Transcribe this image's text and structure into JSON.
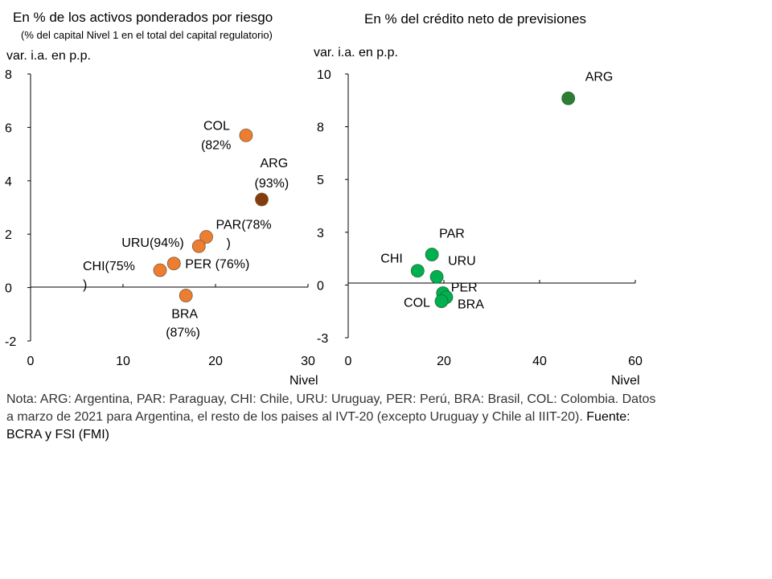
{
  "chart_data": [
    {
      "type": "scatter",
      "title": "En % de los activos ponderados por riesgo",
      "subtitle": "(% del capital Nivel 1 en el total del capital regulatorio)",
      "ylabel": "var. i.a. en p.p.",
      "xlabel": "Nivel",
      "xlim": [
        0,
        30
      ],
      "ylim": [
        -2,
        8
      ],
      "xticks": [
        "0",
        "10",
        "20",
        "30"
      ],
      "yticks": [
        "8",
        "6",
        "4",
        "2",
        "0",
        "-2"
      ],
      "points": [
        {
          "id": "col",
          "label_lines": [
            "COL",
            "(82%"
          ],
          "x": 23.3,
          "y": 5.7,
          "color": "#ED7D31"
        },
        {
          "id": "arg",
          "label_lines": [
            "ARG",
            "(93%)"
          ],
          "x": 25.0,
          "y": 3.3,
          "color": "#843C0C"
        },
        {
          "id": "par",
          "label_lines": [
            "PAR(78%",
            ")"
          ],
          "x": 19.0,
          "y": 1.9,
          "color": "#ED7D31"
        },
        {
          "id": "uru",
          "label_lines": [
            "URU(94%)"
          ],
          "x": 18.2,
          "y": 1.55,
          "color": "#ED7D31"
        },
        {
          "id": "per",
          "label_lines": [
            "PER (76%)"
          ],
          "x": 15.5,
          "y": 0.9,
          "color": "#ED7D31"
        },
        {
          "id": "chi",
          "label_lines": [
            "CHI(75%",
            ")"
          ],
          "x": 14.0,
          "y": 0.65,
          "color": "#ED7D31"
        },
        {
          "id": "bra",
          "label_lines": [
            "BRA",
            "(87%)"
          ],
          "x": 16.8,
          "y": -0.3,
          "color": "#ED7D31"
        }
      ]
    },
    {
      "type": "scatter",
      "title": "En % del crédito neto de previsiones",
      "ylabel": "var. i.a. en p.p.",
      "xlabel": "Nivel",
      "xlim": [
        0,
        60
      ],
      "ylim": [
        -3,
        10
      ],
      "xticks": [
        "0",
        "20",
        "40",
        "60"
      ],
      "yticks": [
        "10",
        "8",
        "5",
        "3",
        "0",
        "-3"
      ],
      "points": [
        {
          "id": "arg",
          "label_lines": [
            "ARG"
          ],
          "x": 46.0,
          "y": 8.8,
          "color": "#2E7D32"
        },
        {
          "id": "par",
          "label_lines": [
            "PAR"
          ],
          "x": 17.5,
          "y": 1.1,
          "color": "#00B050"
        },
        {
          "id": "chi",
          "label_lines": [
            "CHI"
          ],
          "x": 14.5,
          "y": 0.3,
          "color": "#00B050"
        },
        {
          "id": "uru",
          "label_lines": [
            "URU"
          ],
          "x": 18.5,
          "y": 0.0,
          "color": "#00B050"
        },
        {
          "id": "per",
          "label_lines": [
            "PER"
          ],
          "x": 19.8,
          "y": -0.8,
          "color": "#00B050"
        },
        {
          "id": "bra",
          "label_lines": [
            "BRA"
          ],
          "x": 20.5,
          "y": -1.0,
          "color": "#00B050"
        },
        {
          "id": "col",
          "label_lines": [
            "COL"
          ],
          "x": 19.5,
          "y": -1.2,
          "color": "#00B050"
        }
      ]
    }
  ],
  "note": {
    "text": "Nota: ARG: Argentina, PAR: Paraguay, CHI: Chile, URU: Uruguay, PER: Perú, BRA: Brasil, COL: Colombia. Datos a marzo de 2021 para Argentina, el resto de los paises al IVT-20 (excepto Uruguay y Chile al IIIT-20).",
    "source": "Fuente: BCRA y FSI (FMI)"
  }
}
